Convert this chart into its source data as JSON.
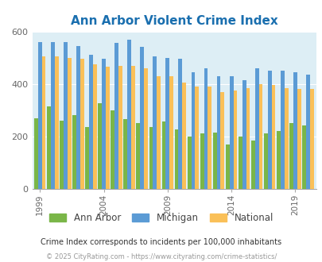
{
  "title": "Ann Arbor Violent Crime Index",
  "years": [
    1999,
    2000,
    2001,
    2002,
    2003,
    2004,
    2005,
    2006,
    2007,
    2008,
    2009,
    2010,
    2011,
    2012,
    2013,
    2014,
    2015,
    2016,
    2017,
    2018,
    2019,
    2020
  ],
  "ann_arbor": [
    270,
    315,
    260,
    280,
    235,
    325,
    300,
    265,
    250,
    235,
    255,
    225,
    200,
    210,
    215,
    170,
    200,
    185,
    210,
    220,
    250,
    240
  ],
  "michigan": [
    558,
    558,
    558,
    545,
    510,
    495,
    555,
    570,
    540,
    505,
    500,
    495,
    445,
    460,
    428,
    428,
    415,
    460,
    450,
    450,
    445,
    435
  ],
  "national": [
    505,
    505,
    500,
    495,
    475,
    465,
    470,
    470,
    460,
    430,
    430,
    405,
    390,
    390,
    370,
    375,
    385,
    400,
    395,
    385,
    380,
    380
  ],
  "ann_arbor_color": "#7ab648",
  "michigan_color": "#5b9bd5",
  "national_color": "#fac058",
  "bg_color": "#ddeef5",
  "ylim": [
    0,
    600
  ],
  "yticks": [
    0,
    200,
    400,
    600
  ],
  "xlabel_ticks": [
    1999,
    2004,
    2009,
    2014,
    2019
  ],
  "footnote1": "Crime Index corresponds to incidents per 100,000 inhabitants",
  "footnote2": "© 2025 CityRating.com - https://www.cityrating.com/crime-statistics/",
  "legend_labels": [
    "Ann Arbor",
    "Michigan",
    "National"
  ],
  "title_color": "#1a6faf",
  "tick_color": "#666666",
  "footnote1_color": "#333333",
  "footnote2_color": "#999999"
}
